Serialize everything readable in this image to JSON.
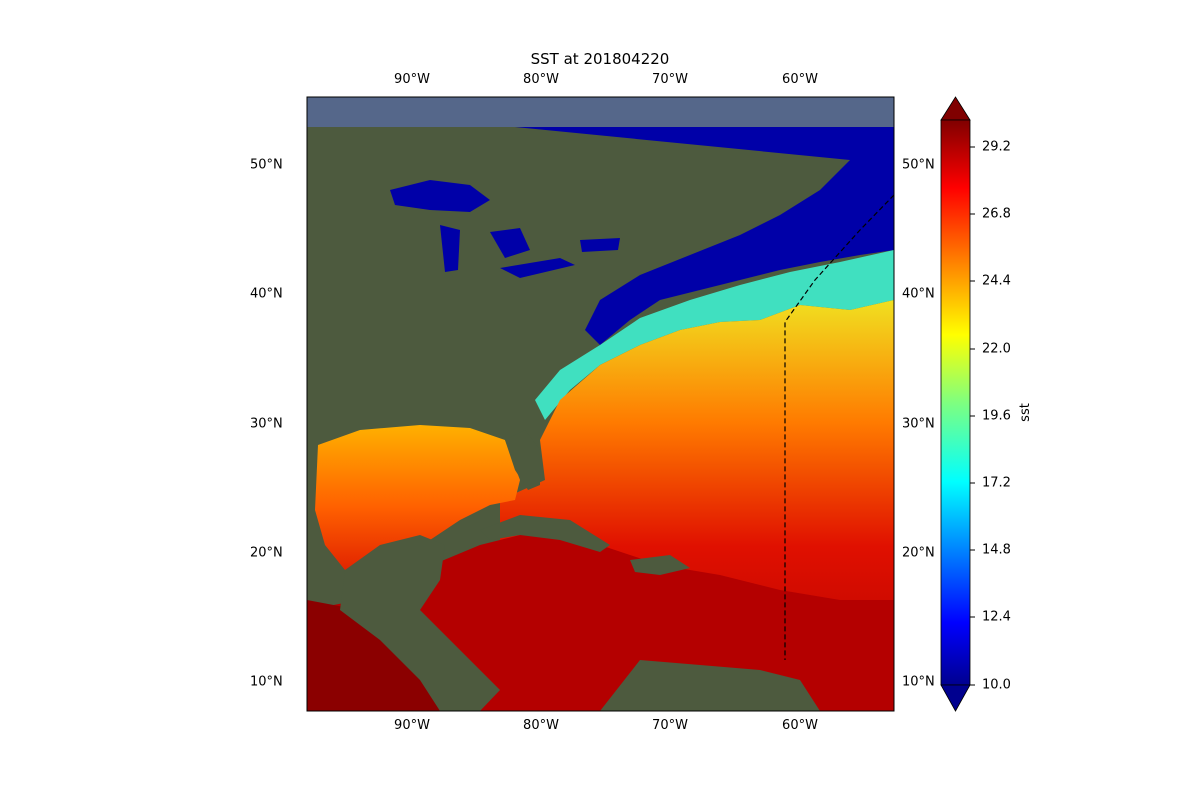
{
  "title": "SST at 201804220",
  "colorbar": {
    "label": "sst",
    "ticks": [
      "29.2",
      "26.8",
      "24.4",
      "22.0",
      "19.6",
      "17.2",
      "14.8",
      "12.4",
      "10.0"
    ],
    "range": [
      10.0,
      30.2
    ],
    "colormap": "jet",
    "extend": "both"
  },
  "axes": {
    "lon_ticks": [
      "90°W",
      "80°W",
      "70°W",
      "60°W"
    ],
    "lat_ticks": [
      "50°N",
      "40°N",
      "30°N",
      "20°N",
      "10°N"
    ]
  },
  "colors": {
    "land": "#4d5a3e",
    "cold": "#0000a0",
    "warm": "#c80000",
    "hot": "#8b0000",
    "boundary": "#000000"
  }
}
